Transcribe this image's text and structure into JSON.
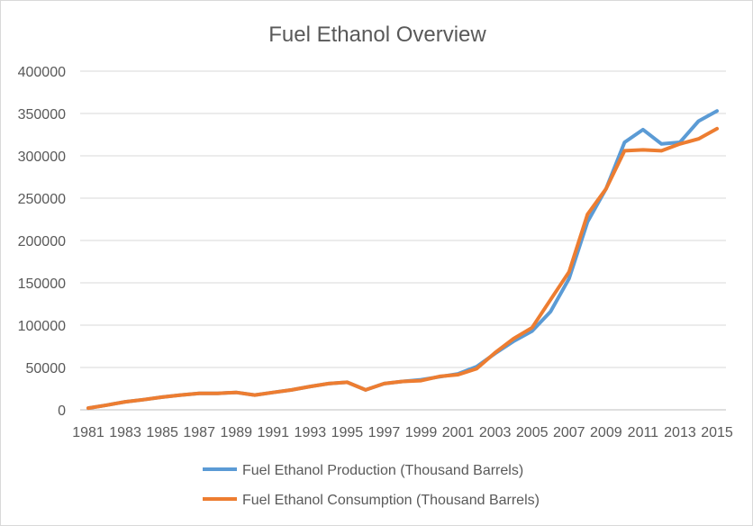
{
  "chart_data": {
    "type": "line",
    "title": "Fuel Ethanol Overview",
    "xlabel": "",
    "ylabel": "",
    "ylim": [
      0,
      400000
    ],
    "y_ticks": [
      0,
      50000,
      100000,
      150000,
      200000,
      250000,
      300000,
      350000,
      400000
    ],
    "y_tick_labels": [
      "0",
      "50000",
      "100000",
      "150000",
      "200000",
      "250000",
      "300000",
      "350000",
      "400000"
    ],
    "x": [
      1981,
      1982,
      1983,
      1984,
      1985,
      1986,
      1987,
      1988,
      1989,
      1990,
      1991,
      1992,
      1993,
      1994,
      1995,
      1996,
      1997,
      1998,
      1999,
      2000,
      2001,
      2002,
      2003,
      2004,
      2005,
      2006,
      2007,
      2008,
      2009,
      2010,
      2011,
      2012,
      2013,
      2014,
      2015
    ],
    "x_tick_labels": [
      "1981",
      "1983",
      "1985",
      "1987",
      "1989",
      "1991",
      "1993",
      "1995",
      "1997",
      "1999",
      "2001",
      "2003",
      "2005",
      "2007",
      "2009",
      "2011",
      "2013",
      "2015"
    ],
    "grid": true,
    "legend": "bottom",
    "series": [
      {
        "name": "Fuel Ethanol Production (Thousand Barrels)",
        "color": "#5b9bd5",
        "values": [
          2000,
          5500,
          9500,
          12000,
          15000,
          17500,
          19500,
          19500,
          20500,
          17500,
          20500,
          23500,
          27500,
          31000,
          32500,
          23500,
          31000,
          33500,
          35500,
          39000,
          42500,
          51000,
          66500,
          81000,
          93000,
          116000,
          155000,
          222000,
          261000,
          316000,
          331000,
          314000,
          316000,
          341000,
          353000
        ]
      },
      {
        "name": "Fuel Ethanol Consumption (Thousand Barrels)",
        "color": "#ed7d31",
        "values": [
          2000,
          5500,
          9500,
          12000,
          15000,
          17500,
          19500,
          19500,
          20500,
          17500,
          20500,
          23500,
          27500,
          31000,
          32500,
          23500,
          31000,
          33500,
          34500,
          39500,
          41500,
          48500,
          67500,
          84000,
          97000,
          130000,
          163000,
          231000,
          261000,
          306000,
          307000,
          306000,
          314000,
          320000,
          332000
        ]
      }
    ]
  }
}
